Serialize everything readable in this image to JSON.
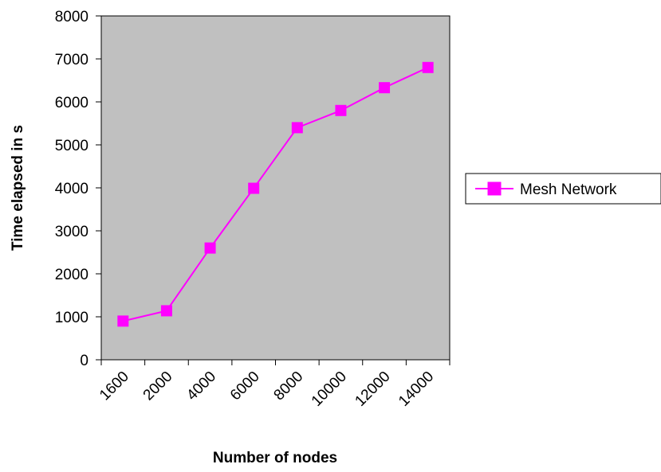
{
  "chart_data": {
    "type": "line",
    "title": "",
    "xlabel": "Number of nodes",
    "ylabel": "Time elapsed in s",
    "categories": [
      "1600",
      "2000",
      "4000",
      "6000",
      "8000",
      "10000",
      "12000",
      "14000"
    ],
    "series": [
      {
        "name": "Mesh Network",
        "values": [
          900,
          1140,
          2600,
          3990,
          5400,
          5800,
          6330,
          6800
        ],
        "color": "#ff00ff",
        "marker": "square"
      }
    ],
    "ylim": [
      0,
      8000
    ],
    "yticks": [
      "0",
      "1000",
      "2000",
      "3000",
      "4000",
      "5000",
      "6000",
      "7000",
      "8000"
    ],
    "grid": false,
    "plot_background": "#c0c0c0",
    "legend_position": "right"
  }
}
